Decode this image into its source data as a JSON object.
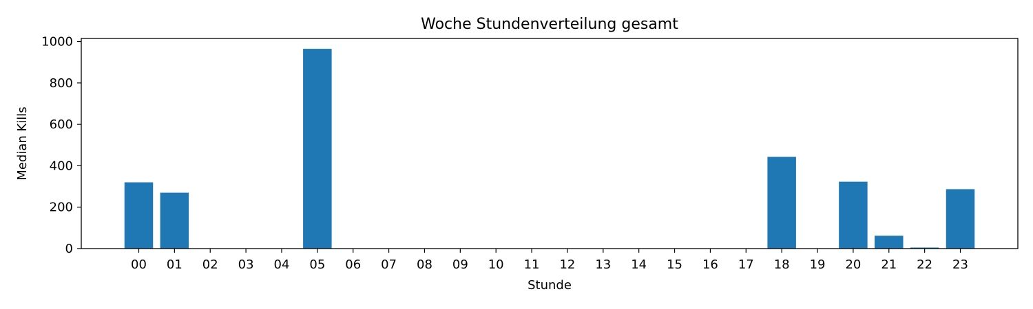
{
  "chart_data": {
    "type": "bar",
    "title": "Woche Stundenverteilung gesamt",
    "xlabel": "Stunde",
    "ylabel": "Median Kills",
    "categories": [
      "00",
      "01",
      "02",
      "03",
      "04",
      "05",
      "06",
      "07",
      "08",
      "09",
      "10",
      "11",
      "12",
      "13",
      "14",
      "15",
      "16",
      "17",
      "18",
      "19",
      "20",
      "21",
      "22",
      "23"
    ],
    "values": [
      320,
      270,
      0,
      0,
      0,
      965,
      0,
      0,
      0,
      0,
      0,
      0,
      0,
      0,
      0,
      0,
      0,
      0,
      443,
      0,
      323,
      62,
      5,
      287
    ],
    "yticks": [
      0,
      200,
      400,
      600,
      800,
      1000
    ],
    "ylim": [
      0,
      1015
    ],
    "grid": false,
    "bar_color": "#1f77b4"
  }
}
